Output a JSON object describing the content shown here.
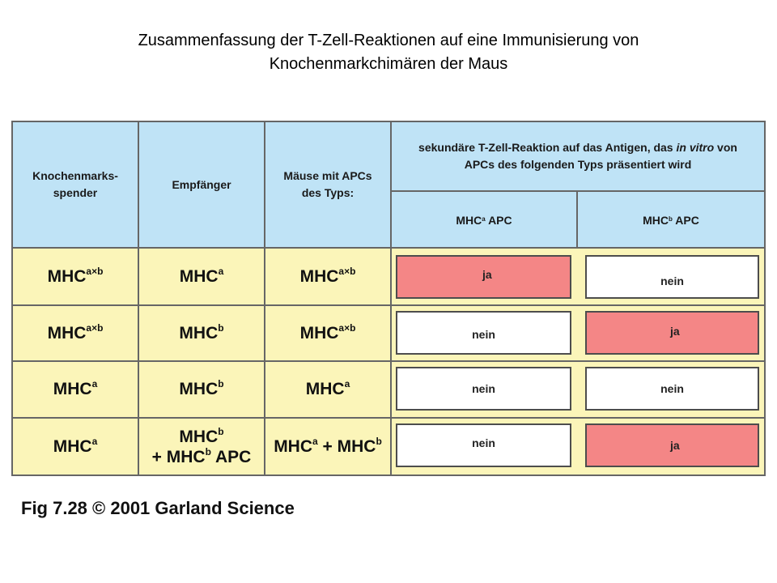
{
  "title": {
    "line1": "Zusammenfassung der T-Zell-Reaktionen auf eine Immunisierung von",
    "line2": "Knochenmarkchimären der Maus"
  },
  "headers": {
    "donor_1": "Knochenmarks-",
    "donor_2": "spender",
    "recipient": "Empfänger",
    "apc_mice_1": "Mäuse mit APCs",
    "apc_mice_2": "des Typs:",
    "response_pre": "sekundäre T-Zell-Reaktion auf das Antigen, das ",
    "response_italic": "in vitro",
    "response_post": " von",
    "response_line2": "APCs des folgenden Typs präsentiert wird",
    "mhc_a_base": "MHC",
    "mhc_a_sup": "a",
    "mhc_a_suffix": " APC",
    "mhc_b_base": "MHC",
    "mhc_b_sup": "b",
    "mhc_b_suffix": " APC"
  },
  "rows": [
    {
      "donor": {
        "base": "MHC",
        "sup": "a×b"
      },
      "recipient": {
        "base": "MHC",
        "sup": "a"
      },
      "apc_mice": {
        "base": "MHC",
        "sup": "a×b"
      },
      "resp_a": "ja",
      "resp_b": "nein"
    },
    {
      "donor": {
        "base": "MHC",
        "sup": "a×b"
      },
      "recipient": {
        "base": "MHC",
        "sup": "b"
      },
      "apc_mice": {
        "base": "MHC",
        "sup": "a×b"
      },
      "resp_a": "nein",
      "resp_b": "ja"
    },
    {
      "donor": {
        "base": "MHC",
        "sup": "a"
      },
      "recipient": {
        "base": "MHC",
        "sup": "b"
      },
      "apc_mice": {
        "base": "MHC",
        "sup": "a"
      },
      "resp_a": "nein",
      "resp_b": "nein"
    },
    {
      "donor": {
        "base": "MHC",
        "sup": "a"
      },
      "recipient": {
        "base": "MHC",
        "sup": "b",
        "line2_pre": "+ MHC",
        "line2_sup": "b",
        "line2_post": " APC"
      },
      "apc_mice": {
        "base": "MHC",
        "sup": "a",
        "mid": " + MHC",
        "sup2": "b"
      },
      "resp_a": "nein",
      "resp_b": "ja"
    }
  ],
  "caption": "Fig 7.28  © 2001 Garland Science",
  "colors": {
    "header_bg": "#bfe3f6",
    "body_bg": "#fbf5b9",
    "ja_bg": "#f48686",
    "nein_bg": "#ffffff",
    "grid": "#666666"
  }
}
